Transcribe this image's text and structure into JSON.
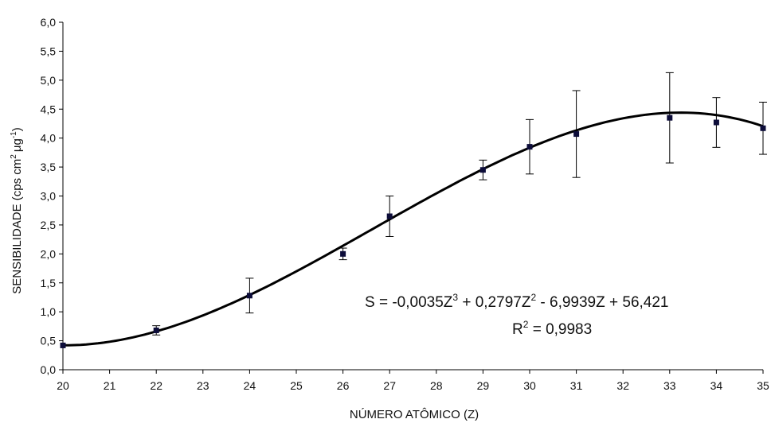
{
  "chart_data": {
    "type": "scatter",
    "title": "",
    "xlabel": "NÚMERO ATÔMICO (Z)",
    "ylabel_prefix": "SENSIBILIDADE (cps cm",
    "ylabel_unit": "μg",
    "ylabel_close": ")",
    "ylabel_sup_cm": "2",
    "ylabel_sup_ug": "-1",
    "x_categories": [
      "20",
      "21",
      "22",
      "23",
      "24",
      "25",
      "26",
      "27",
      "28",
      "29",
      "30",
      "31",
      "32",
      "33",
      "34",
      "35"
    ],
    "ylim": [
      0,
      6
    ],
    "yticks": [
      "0,0",
      "0,5",
      "1,0",
      "1,5",
      "2,0",
      "2,5",
      "3,0",
      "3,5",
      "4,0",
      "4,5",
      "5,0",
      "5,5",
      "6,0"
    ],
    "grid": false,
    "points": [
      {
        "x": 20,
        "y": 0.42,
        "err": 0.0
      },
      {
        "x": 22,
        "y": 0.68,
        "err": 0.08
      },
      {
        "x": 24,
        "y": 1.28,
        "err": 0.3
      },
      {
        "x": 26,
        "y": 2.0,
        "err": 0.1
      },
      {
        "x": 27,
        "y": 2.65,
        "err": 0.35
      },
      {
        "x": 29,
        "y": 3.45,
        "err": 0.17
      },
      {
        "x": 30,
        "y": 3.85,
        "err": 0.47
      },
      {
        "x": 31,
        "y": 4.07,
        "err": 0.75
      },
      {
        "x": 33,
        "y": 4.35,
        "err": 0.78
      },
      {
        "x": 34,
        "y": 4.27,
        "err": 0.43
      },
      {
        "x": 35,
        "y": 4.17,
        "err": 0.45
      }
    ],
    "fit": {
      "a3": -0.0035,
      "a2": 0.2797,
      "a1": -6.9939,
      "a0": 56.421,
      "x_min": 20,
      "x_max": 35
    },
    "equation": {
      "p1": "S = -0,0035Z",
      "s1": "3",
      "p2": " + 0,2797Z",
      "s2": "2",
      "p3": " - 6,9939Z + 56,421",
      "r_p1": "R",
      "r_s1": "2",
      "r_p2": " = 0,9983"
    },
    "colors": {
      "marker": "#0d0d3a",
      "curve": "#000000",
      "axis": "#000000"
    }
  }
}
